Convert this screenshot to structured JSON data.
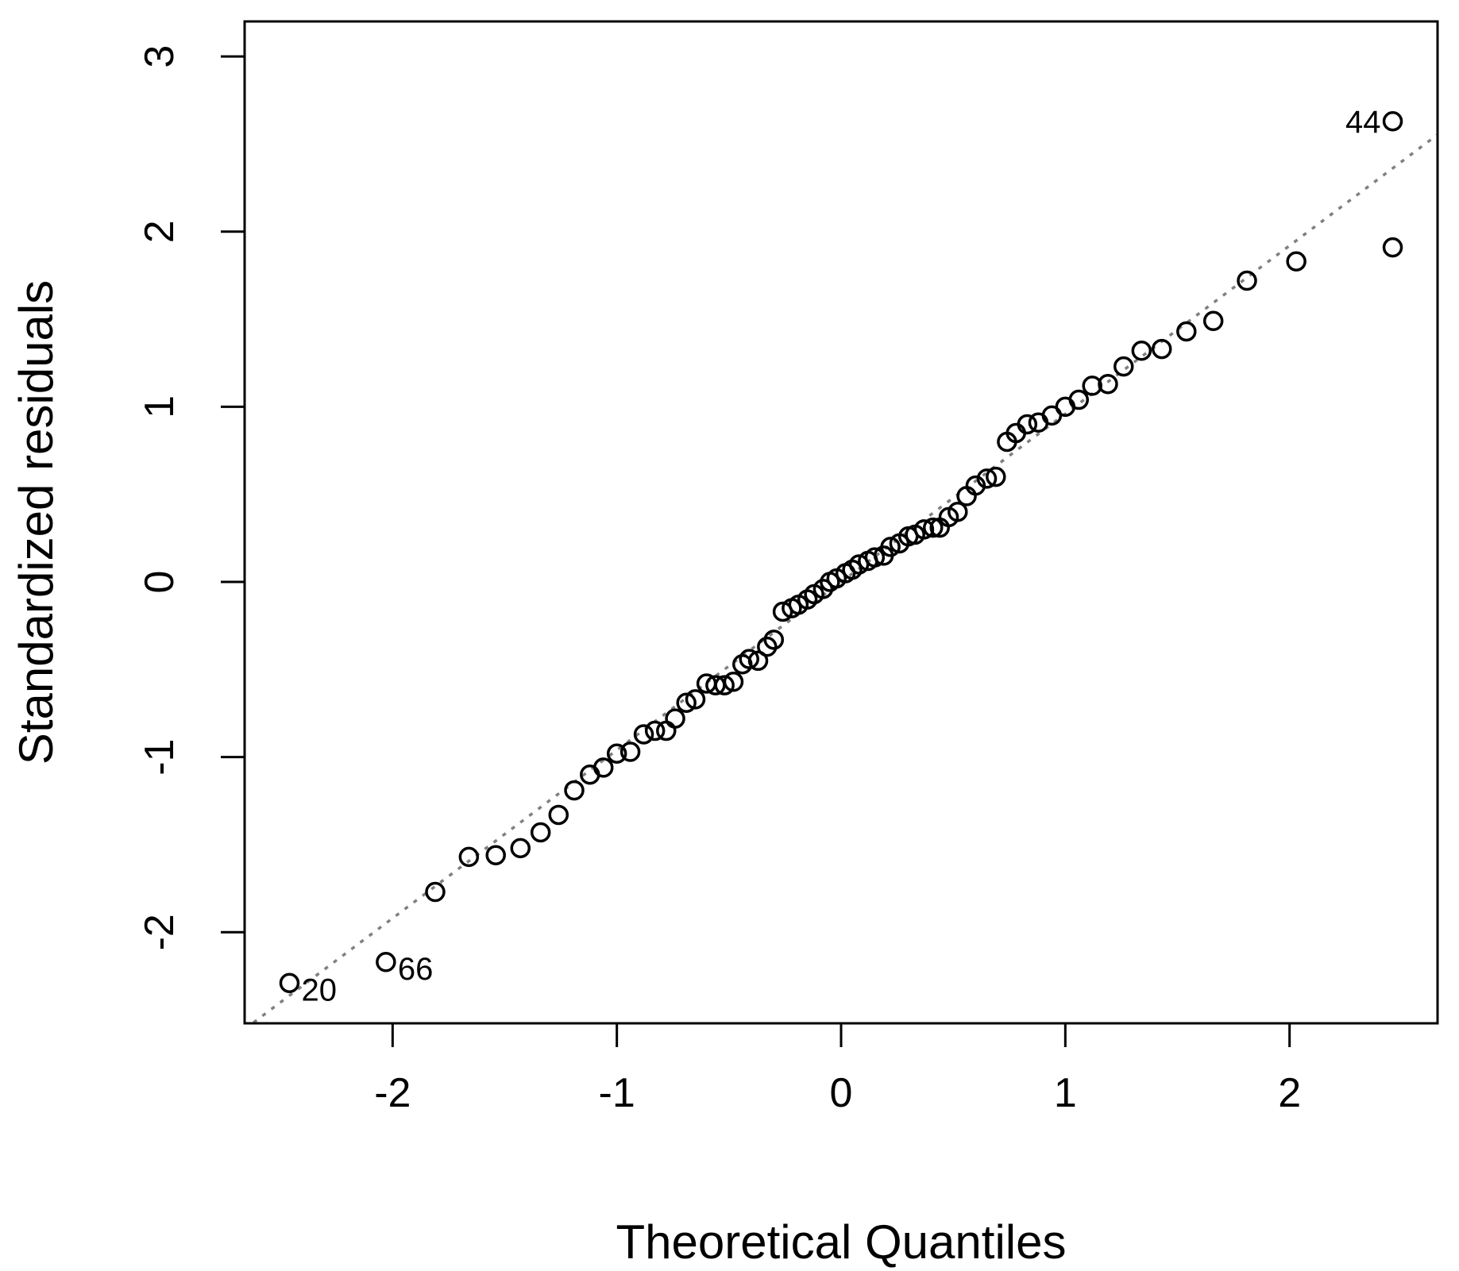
{
  "chart_data": {
    "type": "scatter",
    "xlabel": "Theoretical Quantiles",
    "ylabel": "Standardized residuals",
    "xlim": [
      -2.66,
      2.66
    ],
    "ylim": [
      -2.52,
      3.2
    ],
    "x_ticks": [
      -2,
      -1,
      0,
      1,
      2
    ],
    "y_ticks": [
      -2,
      -1,
      0,
      1,
      2,
      3
    ],
    "x_tick_labels": [
      "-2",
      "-1",
      "0",
      "1",
      "2"
    ],
    "y_tick_labels": [
      "-2",
      "-1",
      "0",
      "1",
      "2",
      "3"
    ],
    "grid": false,
    "reference_line": {
      "intercept": 0.0,
      "slope": 0.96,
      "style": "dotted",
      "color": "#808080"
    },
    "marker": "open-circle",
    "points": [
      {
        "x": -2.46,
        "y": -2.29,
        "label": "20"
      },
      {
        "x": -2.03,
        "y": -2.17,
        "label": "66"
      },
      {
        "x": -1.81,
        "y": -1.77
      },
      {
        "x": -1.66,
        "y": -1.57
      },
      {
        "x": -1.54,
        "y": -1.56
      },
      {
        "x": -1.43,
        "y": -1.52
      },
      {
        "x": -1.34,
        "y": -1.43
      },
      {
        "x": -1.26,
        "y": -1.33
      },
      {
        "x": -1.19,
        "y": -1.19
      },
      {
        "x": -1.12,
        "y": -1.1
      },
      {
        "x": -1.06,
        "y": -1.06
      },
      {
        "x": -1.0,
        "y": -0.98
      },
      {
        "x": -0.94,
        "y": -0.97
      },
      {
        "x": -0.88,
        "y": -0.87
      },
      {
        "x": -0.83,
        "y": -0.85
      },
      {
        "x": -0.78,
        "y": -0.85
      },
      {
        "x": -0.74,
        "y": -0.78
      },
      {
        "x": -0.69,
        "y": -0.69
      },
      {
        "x": -0.65,
        "y": -0.67
      },
      {
        "x": -0.6,
        "y": -0.58
      },
      {
        "x": -0.56,
        "y": -0.59
      },
      {
        "x": -0.52,
        "y": -0.59
      },
      {
        "x": -0.48,
        "y": -0.57
      },
      {
        "x": -0.44,
        "y": -0.47
      },
      {
        "x": -0.41,
        "y": -0.44
      },
      {
        "x": -0.37,
        "y": -0.45
      },
      {
        "x": -0.33,
        "y": -0.37
      },
      {
        "x": -0.3,
        "y": -0.33
      },
      {
        "x": -0.26,
        "y": -0.17
      },
      {
        "x": -0.22,
        "y": -0.15
      },
      {
        "x": -0.19,
        "y": -0.13
      },
      {
        "x": -0.15,
        "y": -0.1
      },
      {
        "x": -0.12,
        "y": -0.07
      },
      {
        "x": -0.08,
        "y": -0.04
      },
      {
        "x": -0.05,
        "y": 0.0
      },
      {
        "x": -0.02,
        "y": 0.02
      },
      {
        "x": 0.02,
        "y": 0.05
      },
      {
        "x": 0.05,
        "y": 0.07
      },
      {
        "x": 0.08,
        "y": 0.1
      },
      {
        "x": 0.12,
        "y": 0.12
      },
      {
        "x": 0.15,
        "y": 0.14
      },
      {
        "x": 0.19,
        "y": 0.15
      },
      {
        "x": 0.22,
        "y": 0.2
      },
      {
        "x": 0.26,
        "y": 0.22
      },
      {
        "x": 0.3,
        "y": 0.26
      },
      {
        "x": 0.33,
        "y": 0.27
      },
      {
        "x": 0.37,
        "y": 0.3
      },
      {
        "x": 0.41,
        "y": 0.31
      },
      {
        "x": 0.44,
        "y": 0.31
      },
      {
        "x": 0.48,
        "y": 0.37
      },
      {
        "x": 0.52,
        "y": 0.4
      },
      {
        "x": 0.56,
        "y": 0.49
      },
      {
        "x": 0.6,
        "y": 0.55
      },
      {
        "x": 0.65,
        "y": 0.59
      },
      {
        "x": 0.69,
        "y": 0.6
      },
      {
        "x": 0.74,
        "y": 0.8
      },
      {
        "x": 0.78,
        "y": 0.85
      },
      {
        "x": 0.83,
        "y": 0.9
      },
      {
        "x": 0.88,
        "y": 0.91
      },
      {
        "x": 0.94,
        "y": 0.95
      },
      {
        "x": 1.0,
        "y": 1.0
      },
      {
        "x": 1.06,
        "y": 1.04
      },
      {
        "x": 1.12,
        "y": 1.12
      },
      {
        "x": 1.19,
        "y": 1.13
      },
      {
        "x": 1.26,
        "y": 1.23
      },
      {
        "x": 1.34,
        "y": 1.32
      },
      {
        "x": 1.43,
        "y": 1.33
      },
      {
        "x": 1.54,
        "y": 1.43
      },
      {
        "x": 1.66,
        "y": 1.49
      },
      {
        "x": 1.81,
        "y": 1.72
      },
      {
        "x": 2.03,
        "y": 1.83
      },
      {
        "x": 2.46,
        "y": 1.91
      },
      {
        "x": 2.46,
        "y": 2.63,
        "label": "44"
      }
    ]
  }
}
